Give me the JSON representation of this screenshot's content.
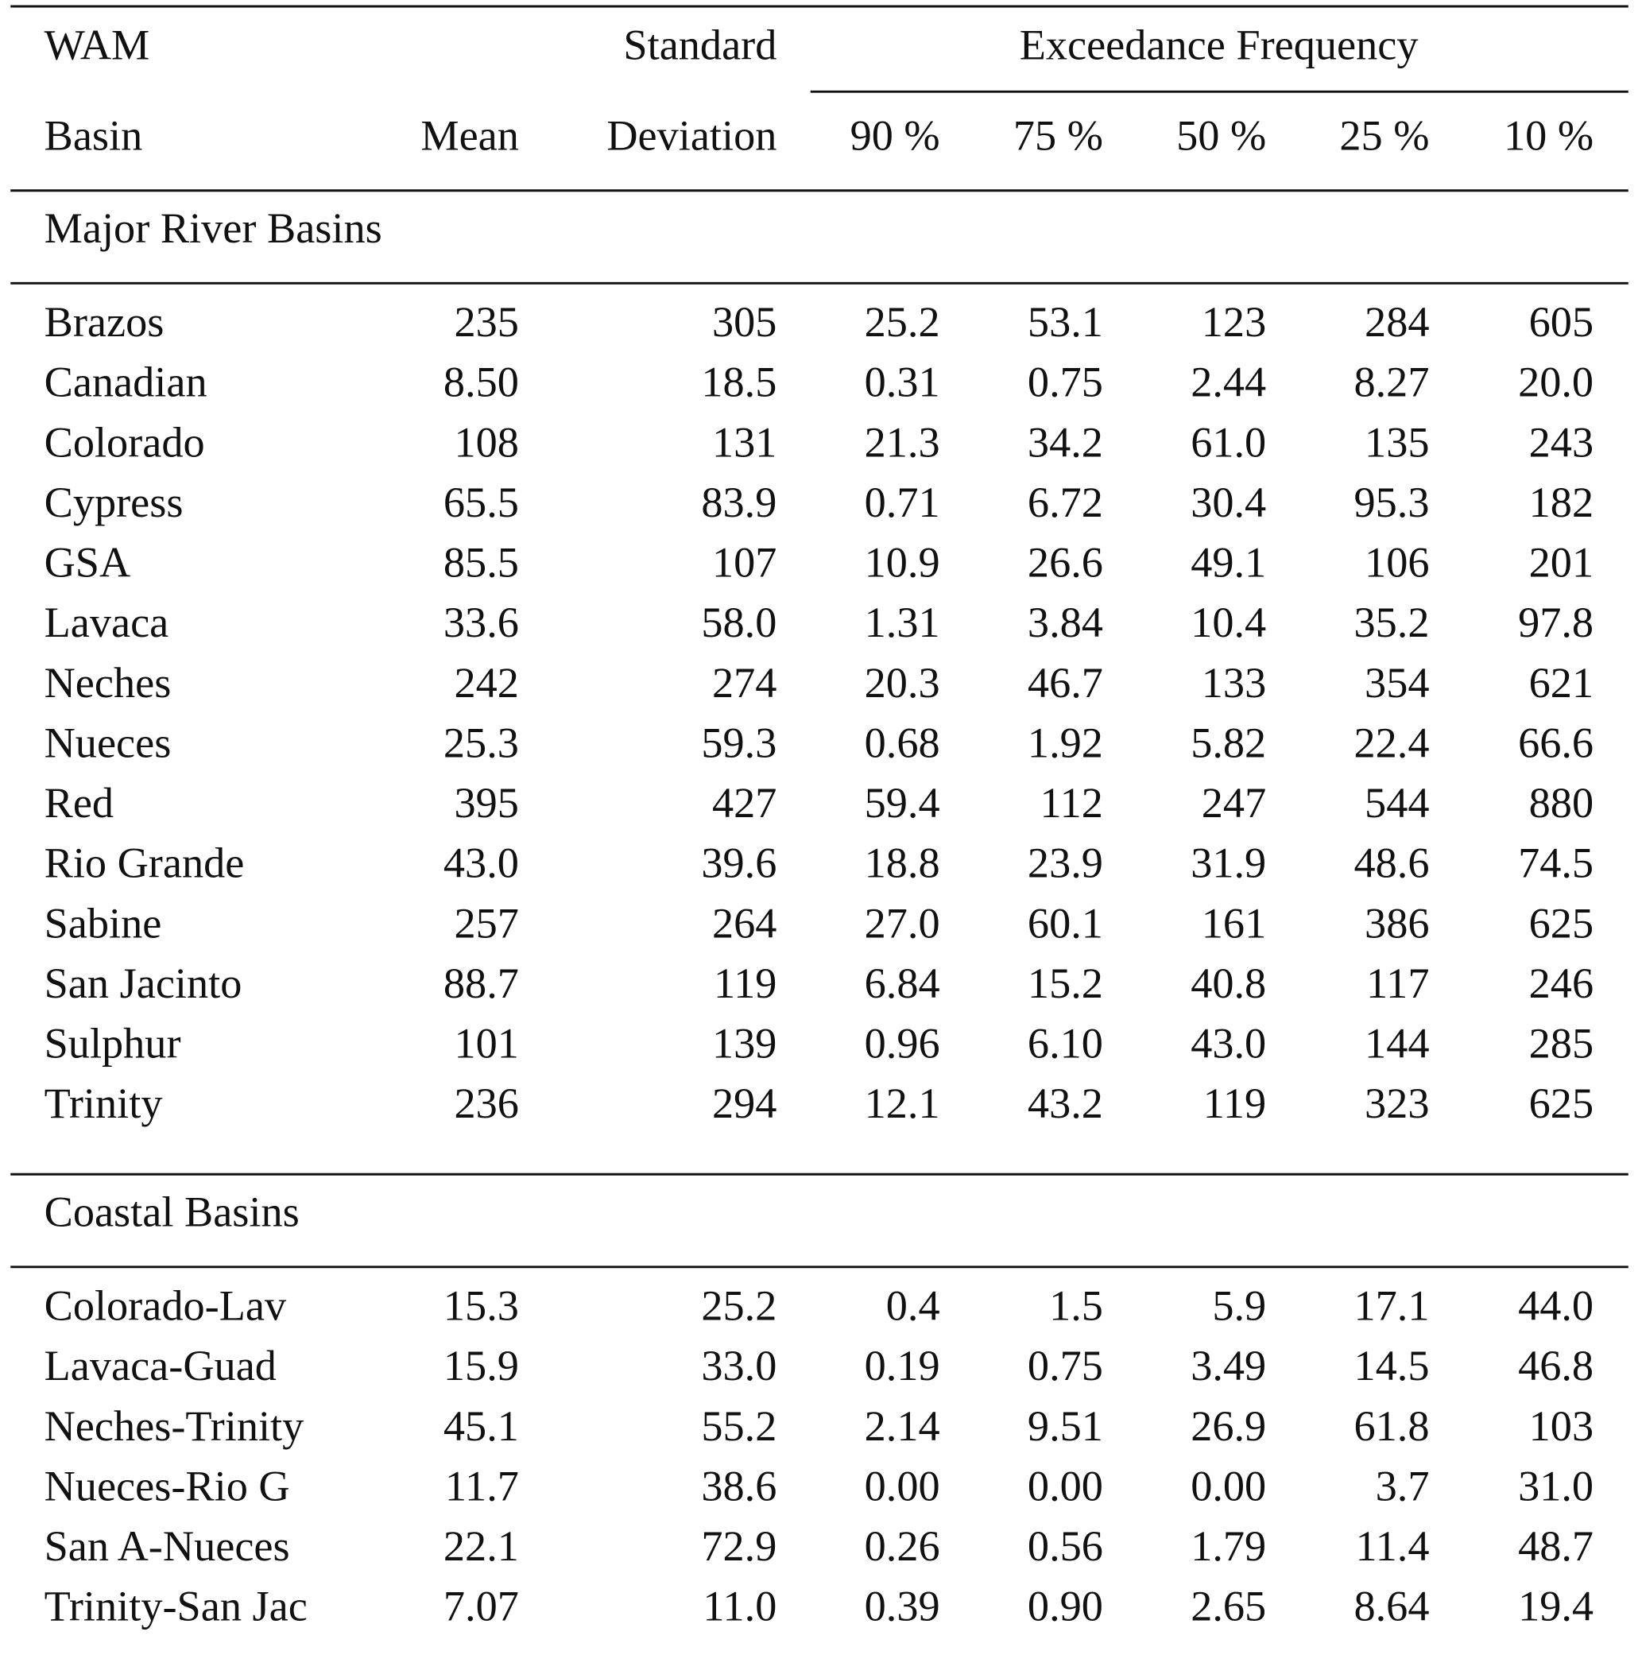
{
  "table": {
    "header": {
      "basin": [
        "WAM",
        "Basin"
      ],
      "mean": "Mean",
      "std_dev": [
        "Standard",
        "Deviation"
      ],
      "exceedance": "Exceedance Frequency",
      "percentiles": [
        "90 %",
        "75 %",
        "50 %",
        "25 %",
        "10 %"
      ]
    },
    "sections": [
      {
        "title": "Major River Basins",
        "rows": [
          [
            "Brazos",
            "235",
            "305",
            "25.2",
            "53.1",
            "123",
            "284",
            "605"
          ],
          [
            "Canadian",
            "8.50",
            "18.5",
            "0.31",
            "0.75",
            "2.44",
            "8.27",
            "20.0"
          ],
          [
            "Colorado",
            "108",
            "131",
            "21.3",
            "34.2",
            "61.0",
            "135",
            "243"
          ],
          [
            "Cypress",
            "65.5",
            "83.9",
            "0.71",
            "6.72",
            "30.4",
            "95.3",
            "182"
          ],
          [
            "GSA",
            "85.5",
            "107",
            "10.9",
            "26.6",
            "49.1",
            "106",
            "201"
          ],
          [
            "Lavaca",
            "33.6",
            "58.0",
            "1.31",
            "3.84",
            "10.4",
            "35.2",
            "97.8"
          ],
          [
            "Neches",
            "242",
            "274",
            "20.3",
            "46.7",
            "133",
            "354",
            "621"
          ],
          [
            "Nueces",
            "25.3",
            "59.3",
            "0.68",
            "1.92",
            "5.82",
            "22.4",
            "66.6"
          ],
          [
            "Red",
            "395",
            "427",
            "59.4",
            "112",
            "247",
            "544",
            "880"
          ],
          [
            "Rio Grande",
            "43.0",
            "39.6",
            "18.8",
            "23.9",
            "31.9",
            "48.6",
            "74.5"
          ],
          [
            "Sabine",
            "257",
            "264",
            "27.0",
            "60.1",
            "161",
            "386",
            "625"
          ],
          [
            "San Jacinto",
            "88.7",
            "119",
            "6.84",
            "15.2",
            "40.8",
            "117",
            "246"
          ],
          [
            "Sulphur",
            "101",
            "139",
            "0.96",
            "6.10",
            "43.0",
            "144",
            "285"
          ],
          [
            "Trinity",
            "236",
            "294",
            "12.1",
            "43.2",
            "119",
            "323",
            "625"
          ]
        ]
      },
      {
        "title": "Coastal Basins",
        "rows": [
          [
            "Colorado-Lav",
            "15.3",
            "25.2",
            "0.4",
            "1.5",
            "5.9",
            "17.1",
            "44.0"
          ],
          [
            "Lavaca-Guad",
            "15.9",
            "33.0",
            "0.19",
            "0.75",
            "3.49",
            "14.5",
            "46.8"
          ],
          [
            "Neches-Trinity",
            "45.1",
            "55.2",
            "2.14",
            "9.51",
            "26.9",
            "61.8",
            "103"
          ],
          [
            "Nueces-Rio G",
            "11.7",
            "38.6",
            "0.00",
            "0.00",
            "0.00",
            "3.7",
            "31.0"
          ],
          [
            "San A-Nueces",
            "22.1",
            "72.9",
            "0.26",
            "0.56",
            "1.79",
            "11.4",
            "48.7"
          ],
          [
            "Trinity-San Jac",
            "7.07",
            "11.0",
            "0.39",
            "0.90",
            "2.65",
            "8.64",
            "19.4"
          ]
        ]
      }
    ]
  }
}
